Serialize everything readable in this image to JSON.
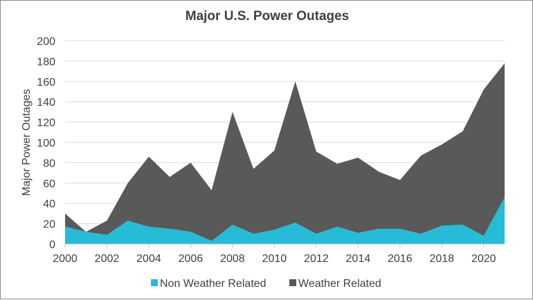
{
  "chart_data": {
    "type": "area",
    "stacked": true,
    "title": "Major U.S. Power Outages",
    "xlabel": "",
    "ylabel": "Major Power Outages",
    "x": [
      2000,
      2001,
      2002,
      2003,
      2004,
      2005,
      2006,
      2007,
      2008,
      2009,
      2010,
      2011,
      2012,
      2013,
      2014,
      2015,
      2016,
      2017,
      2018,
      2019,
      2020,
      2021
    ],
    "x_tick_labels": [
      "2000",
      "2002",
      "2004",
      "2006",
      "2008",
      "2010",
      "2012",
      "2014",
      "2016",
      "2018",
      "2020"
    ],
    "y_tick_labels": [
      "0",
      "20",
      "40",
      "60",
      "80",
      "100",
      "120",
      "140",
      "160",
      "180",
      "200"
    ],
    "ylim": [
      0,
      200
    ],
    "grid": "horizontal",
    "legend_position": "bottom",
    "series": [
      {
        "name": "Non Weather Related",
        "color": "#26BCD7",
        "values": [
          17,
          12,
          9,
          23,
          17,
          15,
          12,
          3,
          19,
          10,
          14,
          21,
          10,
          17,
          11,
          15,
          15,
          10,
          18,
          19,
          8,
          46
        ]
      },
      {
        "name": "Weather Related",
        "color": "#595959",
        "values": [
          13,
          0,
          14,
          37,
          69,
          51,
          68,
          50,
          111,
          64,
          78,
          139,
          81,
          62,
          74,
          56,
          48,
          77,
          80,
          92,
          144,
          132
        ]
      }
    ]
  }
}
